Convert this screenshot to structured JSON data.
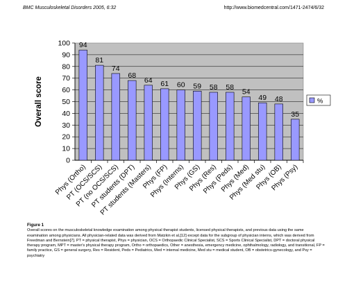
{
  "header": {
    "journal": "BMC Musculoskeletal Disorders 2005, 6:32",
    "url": "http://www.biomedcentral.com/1471-2474/6/32"
  },
  "chart_data": {
    "type": "bar",
    "categories": [
      "Phys (Ortho)",
      "PT (OCS/SCS)",
      "PT (no OCS/SCS)",
      "PT students (DPT)",
      "PT students (Masters)",
      "Phys (FP)",
      "Phys (Interns)",
      "Phys (GS)",
      "Phys (Res)",
      "Phys (Peds)",
      "Phys (Med)",
      "Phys (Med stu)",
      "Phys (OB)",
      "Phys (Psy)"
    ],
    "series": [
      {
        "name": "%",
        "values": [
          94,
          81,
          74,
          68,
          64,
          61,
          60,
          59,
          58,
          58,
          54,
          49,
          48,
          35
        ]
      }
    ],
    "ylabel": "Overall score",
    "xlabel": "",
    "ylim": [
      0,
      100
    ],
    "yticks": [
      0,
      10,
      20,
      30,
      40,
      50,
      60,
      70,
      80,
      90,
      100
    ],
    "grid": true,
    "legend": "right",
    "colors": {
      "bar": "#9999ff",
      "plot_bg": "#c0c0c0",
      "bar_border": "#000000"
    }
  },
  "caption": {
    "label": "Figure 1",
    "text": "Overall scores on the musculoskeletal knowledge examination among physical therapist students, licensed physical therapists, and previous data using the same examination among physicians. All physician-related data was derived from Matzkin et al,[12] except data for the subgroup of physician interns, which was derived from Freedman and Bernstein[7]. PT = physical therapist, Phys = physician, OCS = Orthopaedic Clinical Specialist, SCS = Sports Clinical Specialist, DPT = doctoral physical therapy program, MPT = master's physical therapy program, Ortho = orthopaedics, Other = anesthesia, emergency medicine, ophthalmology, radiology, and transitional, FP = family practice, GS = general surgery, Res = Resident, Peds = Pediatrics, Med = internal medicine, Med stu = medical student, OB = obstetrics-gynecology, and Psy = psychiatry"
  }
}
